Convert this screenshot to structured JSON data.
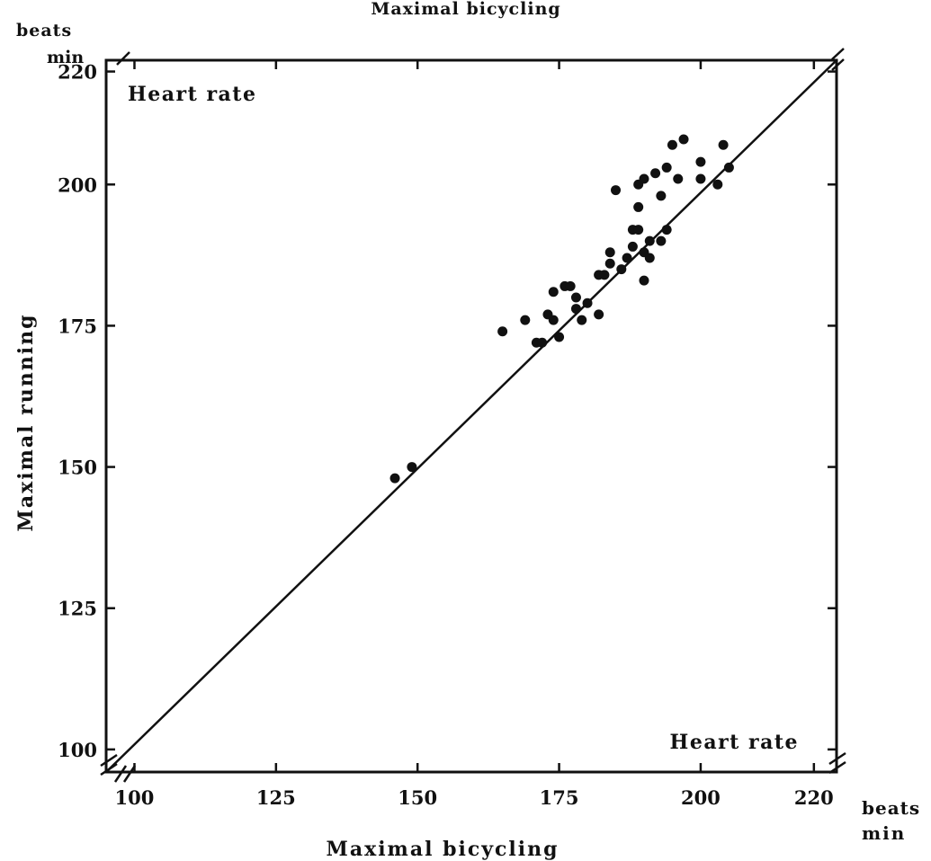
{
  "chart_data": {
    "type": "scatter",
    "top_caption": "Maximal bicycling",
    "xlabel": "Maximal bicycling",
    "ylabel": "Maximal running",
    "x_unit": [
      "beats",
      "min"
    ],
    "y_unit": [
      "beats",
      "min"
    ],
    "panel_label_top": "Heart rate",
    "panel_label_bottom": "Heart rate",
    "xlim": [
      95,
      224
    ],
    "ylim": [
      96,
      222
    ],
    "x_ticks": [
      "100",
      "125",
      "150",
      "175",
      "200",
      "220"
    ],
    "y_ticks": [
      "100",
      "125",
      "150",
      "175",
      "200",
      "220"
    ],
    "identity_line": [
      [
        95,
        96
      ],
      [
        224,
        222
      ]
    ],
    "series": [
      {
        "x": [
          146,
          149,
          165,
          169,
          171,
          172,
          173,
          174,
          174,
          175,
          176,
          177,
          178,
          178,
          179,
          180,
          182,
          182,
          183,
          184,
          184,
          185,
          186,
          187,
          188,
          188,
          189,
          189,
          189,
          190,
          190,
          190,
          191,
          191,
          192,
          193,
          193,
          194,
          194,
          195,
          196,
          197,
          200,
          200,
          203,
          204,
          205
        ],
        "y": [
          148,
          150,
          174,
          176,
          172,
          172,
          177,
          181,
          176,
          173,
          182,
          182,
          178,
          180,
          176,
          179,
          177,
          184,
          184,
          188,
          186,
          199,
          185,
          187,
          192,
          189,
          196,
          200,
          192,
          188,
          183,
          201,
          190,
          187,
          202,
          198,
          190,
          203,
          192,
          207,
          201,
          208,
          204,
          201,
          200,
          207,
          203
        ]
      }
    ]
  }
}
